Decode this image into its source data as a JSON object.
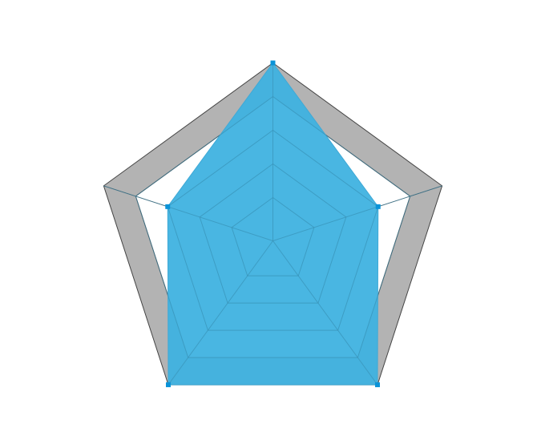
{
  "chart_data": {
    "type": "radar",
    "title": "",
    "indicators": [
      "",
      "",
      "",
      "",
      ""
    ],
    "max": 5,
    "rings": 5,
    "series": [
      {
        "values": [
          5,
          3,
          5,
          5,
          3
        ]
      }
    ],
    "colors": {
      "background_band": "#b3b3b3",
      "axis_line": "#444444",
      "area_fill": "#3fb2e0",
      "area_line": "#3fa9d6",
      "point": "#0a93d8",
      "inner_grid": "#3a8fb3"
    }
  }
}
